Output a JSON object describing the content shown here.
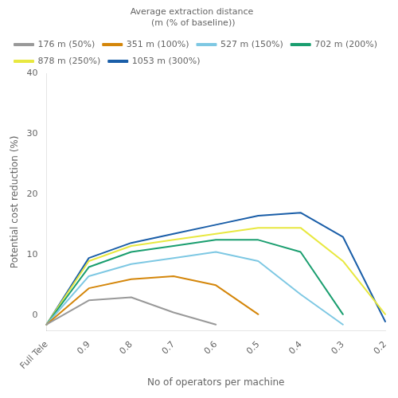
{
  "chart_data": {
    "type": "line",
    "xlabel": "No of operators per machine",
    "ylabel": "Potential cost reduction (%)",
    "legend_title": "Average extraction distance\n (m (% of baseline))",
    "categories": [
      "Full Tele",
      "0.9",
      "0.8",
      "0.7",
      "0.6",
      "0.5",
      "0.4",
      "0.3",
      "0.2"
    ],
    "series": [
      {
        "name": "176 m (50%)",
        "color": "#999999",
        "values": [
          -1.5,
          2.5,
          3.0,
          0.5,
          -1.5,
          null,
          null,
          null,
          null
        ]
      },
      {
        "name": "351 m (100%)",
        "color": "#D4860A",
        "values": [
          -1.5,
          4.5,
          6.0,
          6.5,
          5.0,
          0.2,
          null,
          null,
          null
        ]
      },
      {
        "name": "527 m (150%)",
        "color": "#7EC8E3",
        "values": [
          -1.5,
          6.5,
          8.5,
          9.5,
          10.5,
          9.0,
          3.5,
          -1.5,
          null
        ]
      },
      {
        "name": "702 m (200%)",
        "color": "#1A9E6F",
        "values": [
          -1.5,
          8.0,
          10.5,
          11.5,
          12.5,
          12.5,
          10.5,
          0.2,
          null
        ]
      },
      {
        "name": "878 m (250%)",
        "color": "#E8E840",
        "values": [
          -1.5,
          9.0,
          11.5,
          12.5,
          13.5,
          14.5,
          14.5,
          9.0,
          0.2
        ]
      },
      {
        "name": "1053 m (300%)",
        "color": "#1A5EA8",
        "values": [
          -1.5,
          9.5,
          12.0,
          13.5,
          15.0,
          16.5,
          17.0,
          13.0,
          -1.0
        ]
      }
    ],
    "ylim": [
      -2.5,
      40
    ],
    "yticks": [
      0,
      10,
      20,
      30,
      40
    ],
    "grid": false,
    "legend": "upper left"
  }
}
